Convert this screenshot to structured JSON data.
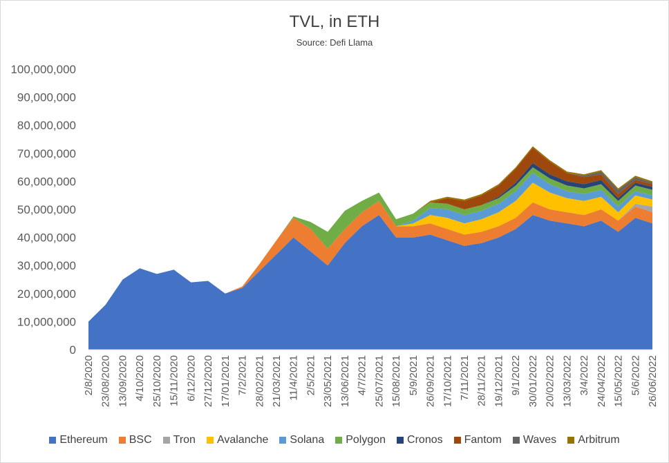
{
  "chart_data": {
    "type": "area",
    "stacked": true,
    "title": "TVL, in ETH",
    "subtitle": "Source: Defi Llama",
    "xlabel": "",
    "ylabel": "",
    "ylim": [
      0,
      100000000
    ],
    "y_ticks": [
      0,
      10000000,
      20000000,
      30000000,
      40000000,
      50000000,
      60000000,
      70000000,
      80000000,
      90000000,
      100000000
    ],
    "y_tick_labels": [
      "0",
      "10,000,000",
      "20,000,000",
      "30,000,000",
      "40,000,000",
      "50,000,000",
      "60,000,000",
      "70,000,000",
      "80,000,000",
      "90,000,000",
      "100,000,000"
    ],
    "categories": [
      "2/8/2020",
      "23/08/2020",
      "13/09/2020",
      "4/10/2020",
      "25/10/2020",
      "15/11/2020",
      "6/12/2020",
      "27/12/2020",
      "17/01/2021",
      "7/2/2021",
      "28/02/2021",
      "21/03/2021",
      "11/4/2021",
      "2/5/2021",
      "23/05/2021",
      "13/06/2021",
      "4/7/2021",
      "25/07/2021",
      "15/08/2021",
      "5/9/2021",
      "26/09/2021",
      "17/10/2021",
      "7/11/2021",
      "28/11/2021",
      "19/12/2021",
      "9/1/2022",
      "30/01/2022",
      "20/02/2022",
      "13/03/2022",
      "3/4/2022",
      "24/04/2022",
      "15/05/2022",
      "5/6/2022",
      "26/06/2022"
    ],
    "legend_position": "bottom",
    "grid": false,
    "series": [
      {
        "name": "Ethereum",
        "color": "#4472C4",
        "values": [
          10.0,
          16.0,
          25.0,
          29.0,
          27.0,
          28.5,
          24.0,
          24.5,
          20.0,
          22.0,
          28.0,
          34.0,
          40.0,
          35.0,
          30.0,
          38.0,
          44.0,
          48.0,
          40.0,
          40.0,
          41.0,
          39.0,
          37.0,
          38.0,
          40.0,
          43.0,
          48.0,
          46.0,
          45.0,
          44.0,
          46.0,
          42.0,
          47.0,
          45.0
        ]
      },
      {
        "name": "BSC",
        "color": "#ED7D31",
        "values": [
          0,
          0,
          0,
          0,
          0,
          0,
          0,
          0,
          0,
          0.5,
          2.5,
          5.0,
          7.0,
          8.0,
          6.0,
          5.0,
          5.0,
          5.0,
          4.0,
          4.0,
          4.0,
          4.0,
          4.0,
          4.0,
          4.0,
          4.0,
          4.5,
          4.0,
          4.0,
          4.0,
          4.0,
          4.0,
          4.0,
          4.0
        ]
      },
      {
        "name": "Tron",
        "color": "#A5A5A5",
        "values": [
          0,
          0,
          0,
          0,
          0,
          0,
          0,
          0,
          0,
          0,
          0,
          0,
          0,
          0,
          0,
          0,
          0,
          0,
          0,
          0,
          0,
          0,
          0,
          0,
          0,
          0,
          0,
          0,
          0,
          0,
          0,
          0,
          1.0,
          2.0
        ]
      },
      {
        "name": "Avalanche",
        "color": "#FFC000",
        "values": [
          0,
          0,
          0,
          0,
          0,
          0,
          0,
          0,
          0,
          0,
          0,
          0,
          0,
          0,
          0,
          0,
          0,
          0,
          0,
          1.0,
          3.0,
          4.0,
          4.0,
          4.5,
          5.0,
          6.0,
          7.0,
          6.0,
          5.0,
          5.0,
          4.5,
          3.0,
          3.0,
          2.5
        ]
      },
      {
        "name": "Solana",
        "color": "#5B9BD5",
        "values": [
          0,
          0,
          0,
          0,
          0,
          0,
          0,
          0,
          0,
          0,
          0,
          0,
          0,
          0,
          0,
          0,
          0,
          0,
          0,
          1.0,
          2.5,
          3.0,
          3.0,
          3.0,
          3.0,
          3.5,
          3.5,
          3.0,
          2.5,
          2.5,
          2.5,
          2.0,
          1.5,
          1.5
        ]
      },
      {
        "name": "Polygon",
        "color": "#70AD47",
        "values": [
          0,
          0,
          0,
          0,
          0,
          0,
          0,
          0,
          0,
          0,
          0,
          0,
          0.5,
          2.5,
          6.0,
          6.5,
          4.0,
          3.0,
          2.5,
          2.5,
          2.0,
          2.0,
          2.0,
          2.0,
          2.0,
          2.0,
          2.0,
          2.0,
          2.0,
          2.0,
          2.0,
          2.0,
          2.0,
          2.0
        ]
      },
      {
        "name": "Cronos",
        "color": "#264478",
        "values": [
          0,
          0,
          0,
          0,
          0,
          0,
          0,
          0,
          0,
          0,
          0,
          0,
          0,
          0,
          0,
          0,
          0,
          0,
          0,
          0,
          0,
          0,
          0,
          0,
          0.5,
          1.0,
          1.5,
          1.5,
          1.5,
          1.5,
          1.5,
          1.0,
          1.0,
          1.0
        ]
      },
      {
        "name": "Fantom",
        "color": "#9E480E",
        "values": [
          0,
          0,
          0,
          0,
          0,
          0,
          0,
          0,
          0,
          0,
          0,
          0,
          0,
          0,
          0,
          0,
          0,
          0,
          0,
          0,
          0,
          2.0,
          3.0,
          3.5,
          4.0,
          5.0,
          5.5,
          4.5,
          3.0,
          2.5,
          2.0,
          1.5,
          1.0,
          1.0
        ]
      },
      {
        "name": "Waves",
        "color": "#636363",
        "values": [
          0,
          0,
          0,
          0,
          0,
          0,
          0,
          0,
          0,
          0,
          0,
          0,
          0,
          0,
          0,
          0,
          0,
          0,
          0,
          0,
          0,
          0,
          0,
          0,
          0,
          0,
          0,
          0,
          0,
          0.5,
          1.0,
          1.5,
          1.0,
          0.5
        ]
      },
      {
        "name": "Arbitrum",
        "color": "#997300",
        "values": [
          0,
          0,
          0,
          0,
          0,
          0,
          0,
          0,
          0,
          0,
          0,
          0,
          0,
          0,
          0,
          0,
          0,
          0,
          0,
          0,
          0.5,
          0.5,
          0.5,
          0.5,
          0.5,
          0.5,
          0.5,
          0.5,
          0.5,
          0.5,
          0.5,
          0.5,
          0.5,
          0.5
        ]
      }
    ],
    "values_unit_note": "series values in millions of ETH"
  }
}
